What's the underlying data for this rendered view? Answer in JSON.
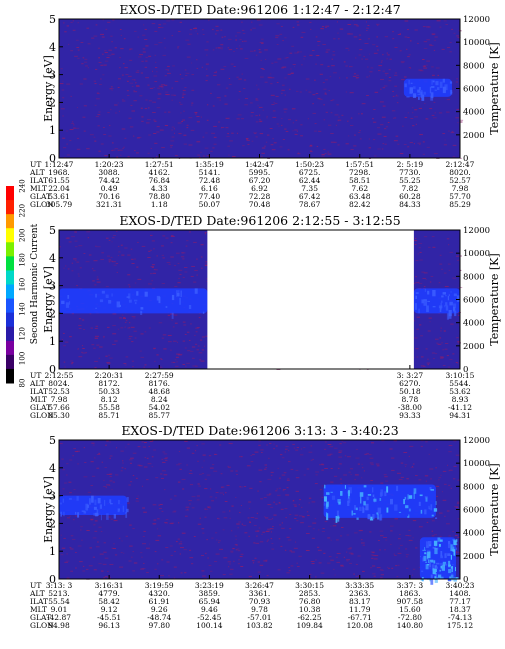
{
  "colorbar": {
    "label": "Second Harmonic Current",
    "ticks": [
      "80",
      "100",
      "120",
      "140",
      "160",
      "180",
      "200",
      "220",
      "240"
    ],
    "colors": [
      "#000000",
      "#3a0066",
      "#7a00a0",
      "#2a1aa8",
      "#1b2fd8",
      "#1a55ff",
      "#00a8ff",
      "#00d8c8",
      "#00e040",
      "#7cf000",
      "#ffff00",
      "#ff9a00",
      "#ff2000",
      "#ff0000"
    ]
  },
  "colors": {
    "background": "#3124a6",
    "noise": "#8a1d6e",
    "band": "#1f3dff",
    "band_bright": "#45b3ff",
    "gap": "#ffffff"
  },
  "chart_data": [
    {
      "type": "heatmap",
      "title": "EXOS-D/TED   Date:961206  1:12:47 - 2:12:47",
      "ylabel": "Energy [eV]",
      "y2label": "Temperature [K]",
      "ylim": [
        0,
        5
      ],
      "y2lim": [
        0,
        12000
      ],
      "yticks": [
        "0",
        "1",
        "2",
        "3",
        "4",
        "5"
      ],
      "y2ticks": [
        "0",
        "2000",
        "4000",
        "6000",
        "8000",
        "10000",
        "12000"
      ],
      "data_gaps": [],
      "bands": [
        {
          "t_start": 0.86,
          "t_end": 0.98,
          "e_low": 2.2,
          "e_high": 2.85,
          "intensity": "medium"
        }
      ],
      "footer_labels": [
        "UT",
        "ALT",
        "ILAT",
        "MLT",
        "GLAT",
        "GLON"
      ],
      "footer_columns": [
        {
          "t": 0.0,
          "values": [
            "1:12:47",
            "1968.",
            "61.55",
            "22.04",
            "53.61",
            "305.79"
          ]
        },
        {
          "t": 0.125,
          "values": [
            "1:20:23",
            "3088.",
            "74.42",
            "0.49",
            "70.16",
            "321.31"
          ]
        },
        {
          "t": 0.25,
          "values": [
            "1:27:51",
            "4162.",
            "76.84",
            "4.33",
            "78.80",
            "1.18"
          ]
        },
        {
          "t": 0.375,
          "values": [
            "1:35:19",
            "5141.",
            "72.48",
            "6.16",
            "77.40",
            "50.07"
          ]
        },
        {
          "t": 0.5,
          "values": [
            "1:42:47",
            "5995.",
            "67.20",
            "6.92",
            "72.28",
            "70.48"
          ]
        },
        {
          "t": 0.625,
          "values": [
            "1:50:23",
            "6725.",
            "62.44",
            "7.35",
            "67.42",
            "78.67"
          ]
        },
        {
          "t": 0.75,
          "values": [
            "1:57:51",
            "7298.",
            "58.51",
            "7.62",
            "63.48",
            "82.42"
          ]
        },
        {
          "t": 0.875,
          "values": [
            "2: 5:19",
            "7730.",
            "55.25",
            "7.82",
            "60.28",
            "84.33"
          ]
        },
        {
          "t": 1.0,
          "values": [
            "2:12:47",
            "8020.",
            "52.57",
            "7.98",
            "57.70",
            "85.29"
          ]
        }
      ]
    },
    {
      "type": "heatmap",
      "title": "EXOS-D/TED   Date:961206  2:12:55 - 3:12:55",
      "ylabel": "Energy [eV]",
      "y2label": "Temperature [K]",
      "ylim": [
        0,
        5
      ],
      "y2lim": [
        0,
        12000
      ],
      "yticks": [
        "0",
        "1",
        "2",
        "3",
        "4",
        "5"
      ],
      "y2ticks": [
        "0",
        "2000",
        "4000",
        "6000",
        "8000",
        "10000",
        "12000"
      ],
      "data_gaps": [
        [
          0.37,
          0.885
        ]
      ],
      "bands": [
        {
          "t_start": 0.0,
          "t_end": 0.37,
          "e_low": 2.0,
          "e_high": 2.9,
          "intensity": "medium"
        },
        {
          "t_start": 0.885,
          "t_end": 1.0,
          "e_low": 2.0,
          "e_high": 2.9,
          "intensity": "medium"
        }
      ],
      "footer_labels": [
        "UT",
        "ALT",
        "ILAT",
        "MLT",
        "GLAT",
        "GLON"
      ],
      "footer_columns": [
        {
          "t": 0.0,
          "values": [
            "2:12:55",
            "8024.",
            "52.53",
            "7.98",
            "57.66",
            "85.30"
          ]
        },
        {
          "t": 0.125,
          "values": [
            "2:20:31",
            "8172.",
            "50.33",
            "8.12",
            "55.58",
            "85.71"
          ]
        },
        {
          "t": 0.25,
          "values": [
            "2:27:59",
            "8176.",
            "48.68",
            "8.24",
            "54.02",
            "85.77"
          ]
        },
        {
          "t": 0.875,
          "values": [
            "3: 3:27",
            "6270.",
            "50.18",
            "8.78",
            "-38.00",
            "93.33"
          ]
        },
        {
          "t": 1.0,
          "values": [
            "3:10:15",
            "5544.",
            "53.62",
            "8.93",
            "-41.12",
            "94.31"
          ]
        }
      ]
    },
    {
      "type": "heatmap",
      "title": "EXOS-D/TED   Date:961206  3:13: 3 - 3:40:23",
      "ylabel": "Energy [eV]",
      "y2label": "Temperature [K]",
      "ylim": [
        0,
        5
      ],
      "y2lim": [
        0,
        12000
      ],
      "yticks": [
        "0",
        "1",
        "2",
        "3",
        "4",
        "5"
      ],
      "y2ticks": [
        "0",
        "2000",
        "4000",
        "6000",
        "8000",
        "10000",
        "12000"
      ],
      "data_gaps": [],
      "bands": [
        {
          "t_start": 0.0,
          "t_end": 0.17,
          "e_low": 2.3,
          "e_high": 3.0,
          "intensity": "medium"
        },
        {
          "t_start": 0.66,
          "t_end": 0.94,
          "e_low": 2.2,
          "e_high": 3.4,
          "intensity": "bright"
        },
        {
          "t_start": 0.9,
          "t_end": 0.99,
          "e_low": 0.0,
          "e_high": 1.5,
          "intensity": "bright"
        }
      ],
      "footer_labels": [
        "UT",
        "ALT",
        "ILAT",
        "MLT",
        "GLAT",
        "GLON"
      ],
      "footer_columns": [
        {
          "t": 0.0,
          "values": [
            "3:13: 3",
            "5213.",
            "55.54",
            "9.01",
            "-42.87",
            "94.98"
          ]
        },
        {
          "t": 0.125,
          "values": [
            "3:16:31",
            "4779.",
            "58.42",
            "9.12",
            "-45.51",
            "96.13"
          ]
        },
        {
          "t": 0.25,
          "values": [
            "3:19:59",
            "4320.",
            "61.91",
            "9.26",
            "-48.74",
            "97.80"
          ]
        },
        {
          "t": 0.375,
          "values": [
            "3:23:19",
            "3859.",
            "65.94",
            "9.46",
            "-52.45",
            "100.14"
          ]
        },
        {
          "t": 0.5,
          "values": [
            "3:26:47",
            "3361.",
            "70.93",
            "9.78",
            "-57.01",
            "103.82"
          ]
        },
        {
          "t": 0.625,
          "values": [
            "3:30:15",
            "2853.",
            "76.80",
            "10.38",
            "-62.25",
            "109.84"
          ]
        },
        {
          "t": 0.75,
          "values": [
            "3:33:35",
            "2363.",
            "83.17",
            "11.79",
            "-67.71",
            "120.08"
          ]
        },
        {
          "t": 0.875,
          "values": [
            "3:37: 3",
            "1863.",
            "907.58",
            "15.60",
            "-72.80",
            "140.80"
          ]
        },
        {
          "t": 1.0,
          "values": [
            "3:40:23",
            "1408.",
            "77.17",
            "18.37",
            "-74.13",
            "175.12"
          ]
        }
      ]
    }
  ]
}
